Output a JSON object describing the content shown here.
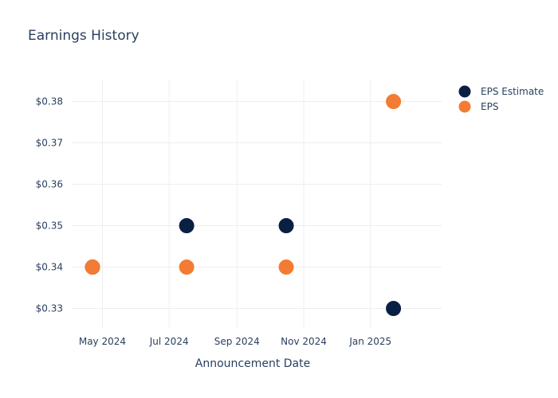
{
  "chart_data": {
    "type": "scatter",
    "title": "Earnings History",
    "xlabel": "Announcement Date",
    "ylabel": "",
    "x_ticks": [
      {
        "date": "2024-05-01",
        "label": "May 2024"
      },
      {
        "date": "2024-07-01",
        "label": "Jul 2024"
      },
      {
        "date": "2024-09-01",
        "label": "Sep 2024"
      },
      {
        "date": "2024-11-01",
        "label": "Nov 2024"
      },
      {
        "date": "2025-01-01",
        "label": "Jan 2025"
      }
    ],
    "xlim": [
      "2024-04-03",
      "2025-03-07"
    ],
    "y_ticks": [
      {
        "value": 0.33,
        "label": "$0.33"
      },
      {
        "value": 0.34,
        "label": "$0.34"
      },
      {
        "value": 0.35,
        "label": "$0.35"
      },
      {
        "value": 0.36,
        "label": "$0.36"
      },
      {
        "value": 0.37,
        "label": "$0.37"
      },
      {
        "value": 0.38,
        "label": "$0.38"
      }
    ],
    "ylim": [
      0.3253,
      0.3853
    ],
    "grid": true,
    "legend_position": "top-right",
    "series": [
      {
        "name": "EPS Estimate",
        "color": "#0a1f44",
        "points": [
          {
            "x": "2024-04-22",
            "y": 0.34
          },
          {
            "x": "2024-07-17",
            "y": 0.35
          },
          {
            "x": "2024-10-16",
            "y": 0.35
          },
          {
            "x": "2025-01-22",
            "y": 0.33
          }
        ]
      },
      {
        "name": "EPS",
        "color": "#f47b33",
        "points": [
          {
            "x": "2024-04-22",
            "y": 0.34
          },
          {
            "x": "2024-07-17",
            "y": 0.34
          },
          {
            "x": "2024-10-16",
            "y": 0.34
          },
          {
            "x": "2025-01-22",
            "y": 0.38
          }
        ]
      }
    ]
  }
}
